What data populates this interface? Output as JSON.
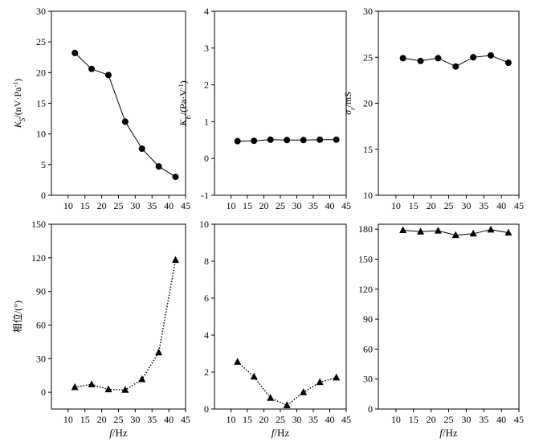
{
  "x_axis_label_italic": "f",
  "x_axis_label_unit": "/Hz",
  "chart_data": [
    {
      "type": "line",
      "ylabel": "K_S/(nV·Pa⁻¹)",
      "ylabel_parts": [
        [
          "K",
          "i"
        ],
        [
          "S",
          "sub-i"
        ],
        [
          "/(nV·Pa",
          "n"
        ],
        [
          "-1",
          "sup"
        ],
        [
          ")",
          "n"
        ]
      ],
      "xlim": [
        5,
        45
      ],
      "xticks": [
        10,
        15,
        20,
        25,
        30,
        35,
        40,
        45
      ],
      "ylim": [
        0,
        30
      ],
      "yticks": [
        0,
        5,
        10,
        15,
        20,
        25,
        30
      ],
      "marker": "circle",
      "line_style": "solid",
      "x": [
        12,
        17,
        22,
        27,
        32,
        37,
        42
      ],
      "values": [
        23.2,
        20.6,
        19.6,
        12.0,
        7.6,
        4.7,
        3.0
      ]
    },
    {
      "type": "line",
      "ylabel": "K_E/(Pa·V⁻¹)",
      "ylabel_parts": [
        [
          "K",
          "i"
        ],
        [
          "E",
          "sub-i"
        ],
        [
          "/(Pa·V",
          "n"
        ],
        [
          "-1",
          "sup"
        ],
        [
          ")",
          "n"
        ]
      ],
      "xlim": [
        5,
        45
      ],
      "xticks": [
        10,
        15,
        20,
        25,
        30,
        35,
        40,
        45
      ],
      "ylim": [
        -1,
        4
      ],
      "yticks": [
        -1,
        0,
        1,
        2,
        3,
        4
      ],
      "marker": "circle",
      "line_style": "solid",
      "x": [
        12,
        17,
        22,
        27,
        32,
        37,
        42
      ],
      "values": [
        0.47,
        0.48,
        0.51,
        0.5,
        0.5,
        0.51,
        0.51
      ]
    },
    {
      "type": "line",
      "ylabel": "σr/mS",
      "ylabel_parts": [
        [
          "σ",
          "i"
        ],
        [
          "r",
          "sub-i"
        ],
        [
          "/mS",
          "n"
        ]
      ],
      "xlim": [
        5,
        45
      ],
      "xticks": [
        10,
        15,
        20,
        25,
        30,
        35,
        40,
        45
      ],
      "ylim": [
        10,
        30
      ],
      "yticks": [
        10,
        15,
        20,
        25,
        30
      ],
      "marker": "circle",
      "line_style": "solid",
      "x": [
        12,
        17,
        22,
        27,
        32,
        37,
        42
      ],
      "values": [
        24.9,
        24.6,
        24.9,
        24.0,
        25.0,
        25.2,
        24.4
      ]
    },
    {
      "type": "line",
      "ylabel": "相位/(°)",
      "ylabel_parts": [
        [
          "相位/(°)",
          "n"
        ]
      ],
      "xlim": [
        5,
        45
      ],
      "xticks": [
        10,
        15,
        20,
        25,
        30,
        35,
        40,
        45
      ],
      "ylim": [
        -15,
        150
      ],
      "yticks": [
        0,
        30,
        60,
        90,
        120,
        150
      ],
      "marker": "triangle",
      "line_style": "dotted",
      "x": [
        12,
        17,
        22,
        27,
        32,
        37,
        42
      ],
      "values": [
        4.5,
        7.0,
        2.5,
        2.0,
        11.5,
        35.5,
        118.0
      ]
    },
    {
      "type": "line",
      "ylabel": "",
      "ylabel_parts": [],
      "xlim": [
        5,
        45
      ],
      "xticks": [
        10,
        15,
        20,
        25,
        30,
        35,
        40,
        45
      ],
      "ylim": [
        0,
        10
      ],
      "yticks": [
        0,
        2,
        4,
        6,
        8,
        10
      ],
      "marker": "triangle",
      "line_style": "dotted",
      "x": [
        12,
        17,
        22,
        27,
        32,
        37,
        42
      ],
      "values": [
        2.55,
        1.75,
        0.6,
        0.2,
        0.9,
        1.45,
        1.7
      ]
    },
    {
      "type": "line",
      "ylabel": "",
      "ylabel_parts": [],
      "xlim": [
        5,
        45
      ],
      "xticks": [
        10,
        15,
        20,
        25,
        30,
        35,
        40,
        45
      ],
      "ylim": [
        0,
        185
      ],
      "yticks": [
        0,
        30,
        60,
        90,
        120,
        150,
        180
      ],
      "marker": "triangle",
      "line_style": "solid",
      "x": [
        12,
        17,
        22,
        27,
        32,
        37,
        42
      ],
      "values": [
        179.0,
        177.5,
        178.5,
        174.0,
        175.5,
        179.5,
        176.5
      ]
    }
  ]
}
